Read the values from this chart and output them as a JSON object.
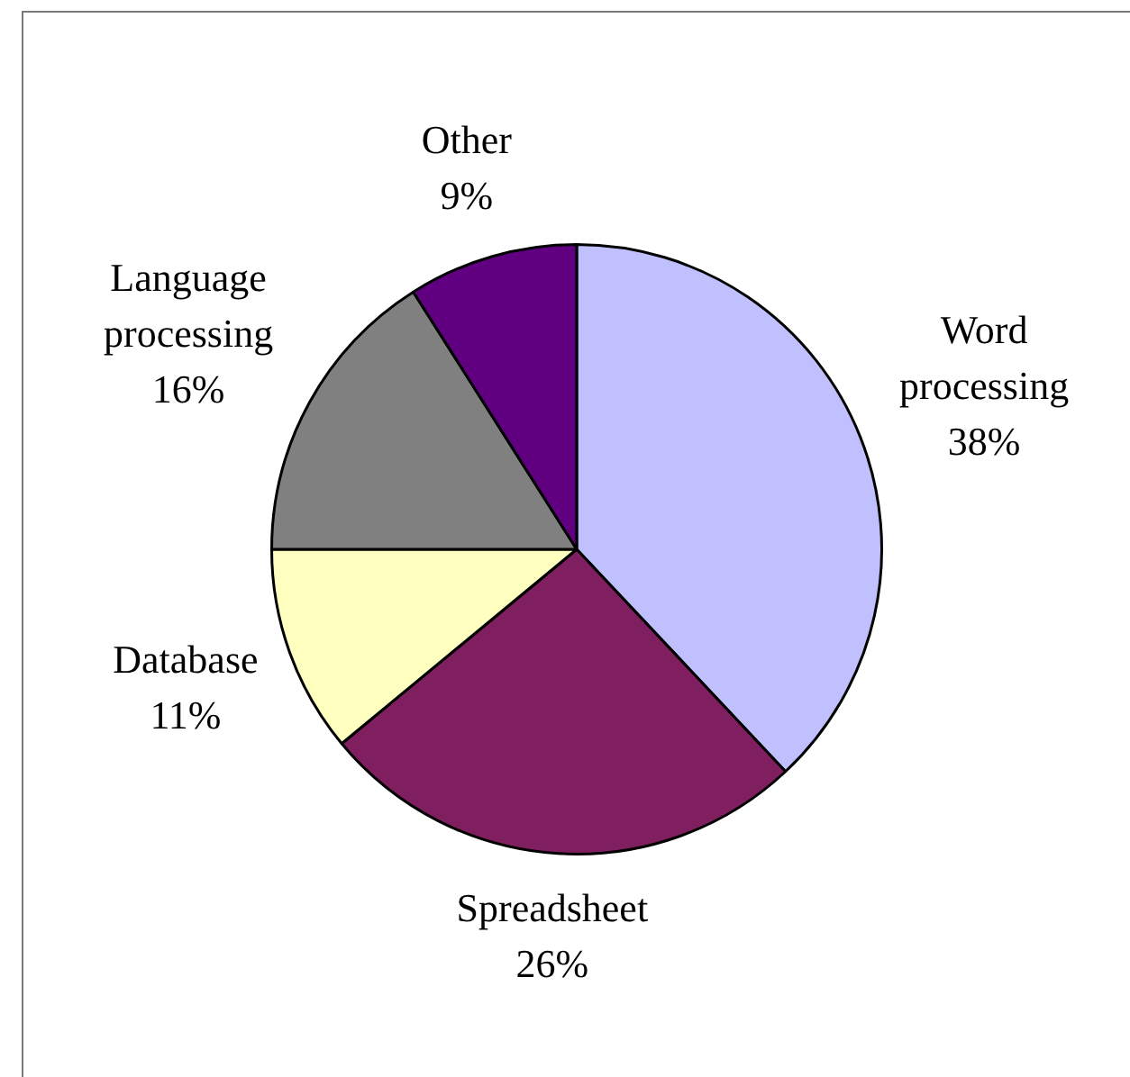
{
  "chart_data": {
    "type": "pie",
    "categories": [
      "Word processing",
      "Spreadsheet",
      "Database",
      "Language processing",
      "Other"
    ],
    "values": [
      38,
      26,
      11,
      16,
      9
    ],
    "value_labels": [
      "38%",
      "26%",
      "11%",
      "16%",
      "9%"
    ],
    "colors": [
      "#c0c0ff",
      "#801f60",
      "#ffffc0",
      "#808080",
      "#600080"
    ],
    "legend": false
  }
}
